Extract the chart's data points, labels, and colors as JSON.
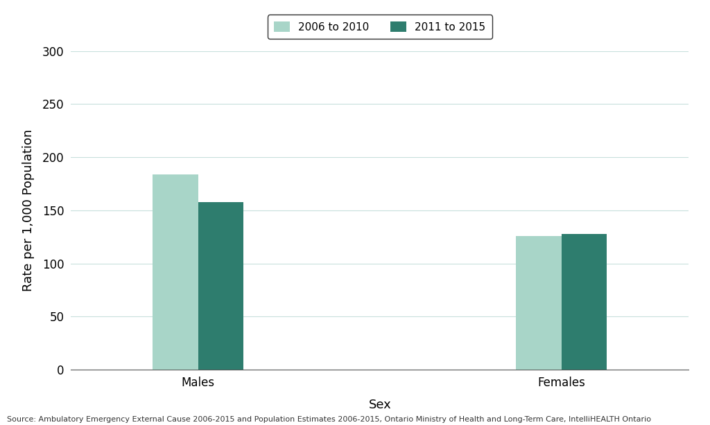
{
  "categories": [
    "Males",
    "Females"
  ],
  "values_2006_2010": [
    184,
    126
  ],
  "values_2011_2015": [
    158,
    128
  ],
  "color_2006_2010": "#a8d5c8",
  "color_2011_2015": "#2e7d6e",
  "legend_labels": [
    "2006 to 2010",
    "2011 to 2015"
  ],
  "ylabel": "Rate per 1,000 Population",
  "xlabel": "Sex",
  "ylim": [
    0,
    300
  ],
  "yticks": [
    0,
    50,
    100,
    150,
    200,
    250,
    300
  ],
  "bar_width": 0.25,
  "group_positions": [
    1.0,
    3.0
  ],
  "xlim": [
    0.3,
    3.7
  ],
  "background_color": "#ffffff",
  "plot_bg_color": "#ffffff",
  "grid_color": "#c8e0dc",
  "source_text": "Source: Ambulatory Emergency External Cause 2006-2015 and Population Estimates 2006-2015, Ontario Ministry of Health and Long-Term Care, IntelliHEALTH Ontario",
  "source_fontsize": 8,
  "axis_fontsize": 13,
  "tick_fontsize": 12,
  "legend_fontsize": 11
}
